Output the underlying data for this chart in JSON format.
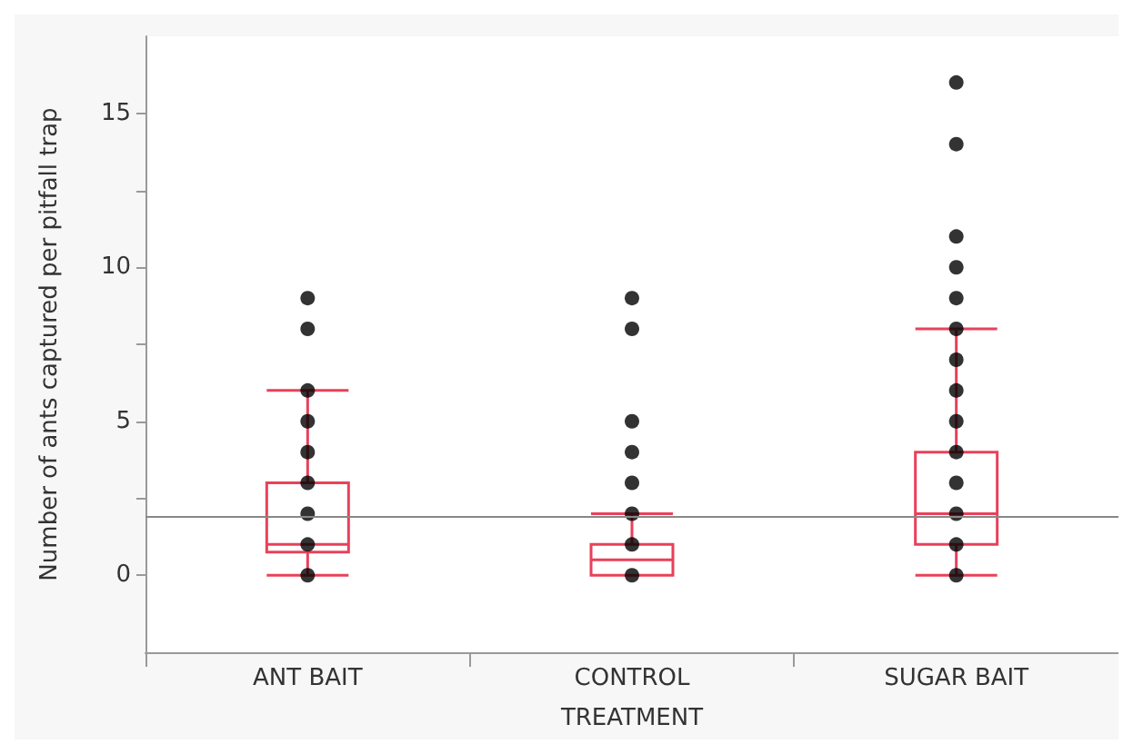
{
  "chart_data": {
    "type": "box",
    "xlabel": "TREATMENT",
    "ylabel": "Number of ants captured per pitfall trap",
    "categories": [
      "ANT BAIT",
      "CONTROL",
      "SUGAR BAIT"
    ],
    "ylim": [
      -2.5,
      17.5
    ],
    "yticks": [
      0,
      {
        "value": 2.5,
        "label": null
      },
      5,
      {
        "value": 7.5,
        "label": null
      },
      10,
      {
        "value": 12.5,
        "label": null
      },
      15
    ],
    "grid": false,
    "series": [
      {
        "color": "#e8415a",
        "boxes": [
          {
            "low": 0,
            "q1": 0.75,
            "median": 1,
            "q3": 3,
            "high": 6
          },
          {
            "low": 0,
            "q1": 0,
            "median": 0.5,
            "q3": 1,
            "high": 2
          },
          {
            "low": 0,
            "q1": 1,
            "median": 2,
            "q3": 4,
            "high": 8
          }
        ]
      },
      {
        "type": "scatter",
        "color": "#000000",
        "marker": "circle",
        "x": [
          "ANT BAIT",
          "ANT BAIT",
          "ANT BAIT",
          "ANT BAIT",
          "ANT BAIT",
          "ANT BAIT",
          "ANT BAIT",
          "ANT BAIT",
          "ANT BAIT",
          "CONTROL",
          "CONTROL",
          "CONTROL",
          "CONTROL",
          "CONTROL",
          "CONTROL",
          "CONTROL",
          "CONTROL",
          "SUGAR BAIT",
          "SUGAR BAIT",
          "SUGAR BAIT",
          "SUGAR BAIT",
          "SUGAR BAIT",
          "SUGAR BAIT",
          "SUGAR BAIT",
          "SUGAR BAIT",
          "SUGAR BAIT",
          "SUGAR BAIT",
          "SUGAR BAIT",
          "SUGAR BAIT",
          "SUGAR BAIT",
          "SUGAR BAIT"
        ],
        "values": [
          0,
          1,
          2,
          3,
          4,
          5,
          6,
          8,
          9,
          0,
          1,
          2,
          3,
          4,
          5,
          8,
          9,
          0,
          1,
          2,
          3,
          4,
          5,
          6,
          7,
          8,
          9,
          10,
          11,
          14,
          16
        ]
      }
    ],
    "ref_lines": [
      {
        "axis": "y",
        "value": 1.9,
        "color": "#888888",
        "line_style": "solid"
      }
    ]
  }
}
